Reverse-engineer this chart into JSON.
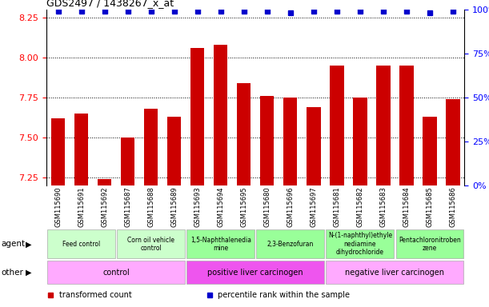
{
  "title": "GDS2497 / 1438267_x_at",
  "samples": [
    "GSM115690",
    "GSM115691",
    "GSM115692",
    "GSM115687",
    "GSM115688",
    "GSM115689",
    "GSM115693",
    "GSM115694",
    "GSM115695",
    "GSM115680",
    "GSM115696",
    "GSM115697",
    "GSM115681",
    "GSM115682",
    "GSM115683",
    "GSM115684",
    "GSM115685",
    "GSM115686"
  ],
  "bar_values": [
    7.62,
    7.65,
    7.24,
    7.5,
    7.68,
    7.63,
    8.06,
    8.08,
    7.84,
    7.76,
    7.75,
    7.69,
    7.95,
    7.75,
    7.95,
    7.95,
    7.63,
    7.74
  ],
  "percentile_values": [
    99,
    99,
    99,
    99,
    99,
    99,
    99,
    99,
    99,
    99,
    98,
    99,
    99,
    99,
    99,
    99,
    98,
    99
  ],
  "bar_color": "#cc0000",
  "percentile_color": "#0000cc",
  "ylim": [
    7.2,
    8.3
  ],
  "yticks": [
    7.25,
    7.5,
    7.75,
    8.0,
    8.25
  ],
  "y2ticks": [
    0,
    25,
    50,
    75,
    100
  ],
  "y2ticklabels": [
    "0%",
    "25%",
    "50%",
    "75%",
    "100%"
  ],
  "agent_groups": [
    {
      "label": "Feed control",
      "start": 0,
      "end": 3,
      "color": "#ccffcc"
    },
    {
      "label": "Corn oil vehicle\ncontrol",
      "start": 3,
      "end": 6,
      "color": "#ccffcc"
    },
    {
      "label": "1,5-Naphthalenedia\nmine",
      "start": 6,
      "end": 9,
      "color": "#99ff99"
    },
    {
      "label": "2,3-Benzofuran",
      "start": 9,
      "end": 12,
      "color": "#99ff99"
    },
    {
      "label": "N-(1-naphthyl)ethyle\nnediamine\ndihydrochloride",
      "start": 12,
      "end": 15,
      "color": "#99ff99"
    },
    {
      "label": "Pentachloronitroben\nzene",
      "start": 15,
      "end": 18,
      "color": "#99ff99"
    }
  ],
  "other_groups": [
    {
      "label": "control",
      "start": 0,
      "end": 6,
      "color": "#ffaaff"
    },
    {
      "label": "positive liver carcinogen",
      "start": 6,
      "end": 12,
      "color": "#ee55ee"
    },
    {
      "label": "negative liver carcinogen",
      "start": 12,
      "end": 18,
      "color": "#ffaaff"
    }
  ],
  "agent_label": "agent",
  "other_label": "other",
  "legend_items": [
    {
      "label": "transformed count",
      "color": "#cc0000"
    },
    {
      "label": "percentile rank within the sample",
      "color": "#0000cc"
    }
  ],
  "xtick_bg": "#d8d8d8",
  "plot_bg": "#ffffff",
  "n_samples": 18
}
